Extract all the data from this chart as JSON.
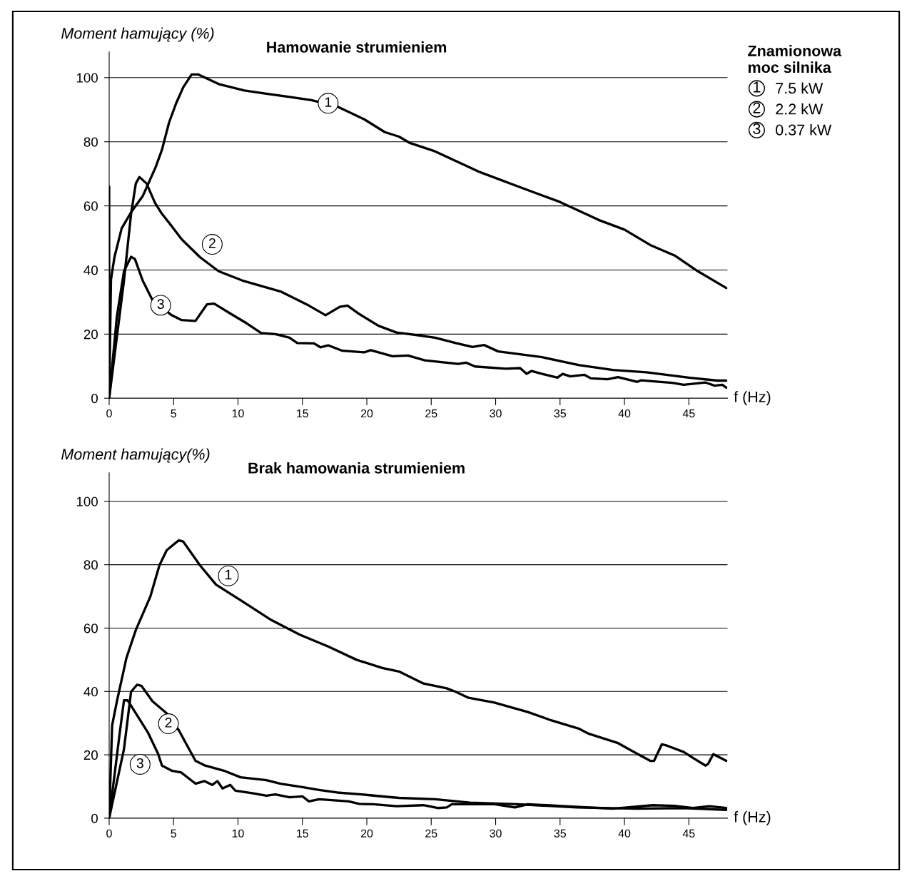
{
  "chart_data": [
    {
      "type": "line",
      "title": "Hamowanie strumieniem",
      "ylabel": "Moment hamujący (%)",
      "xlabel": "f (Hz)",
      "legend_title": "Znamionowa\nmoc silnika",
      "xlim": [
        0,
        48
      ],
      "xticks": [
        0,
        5,
        10,
        15,
        20,
        25,
        30,
        35,
        40,
        45
      ],
      "ylim": [
        0,
        108
      ],
      "yticks": [
        0,
        20,
        40,
        60,
        80,
        100
      ],
      "grid": "y",
      "legend": "top right",
      "marker": "none",
      "line_style": "solid",
      "series": [
        {
          "name": "7.5 kW",
          "color": "#000000",
          "x": [
            0,
            0,
            0.14,
            0.41,
            0.97,
            1.7,
            2.6,
            3.6,
            4.1,
            4.65,
            5.2,
            5.75,
            6.4,
            6.9,
            8.5,
            10.5,
            12.2,
            14.0,
            15.7,
            17.7,
            19.8,
            21.4,
            22.5,
            23.3,
            25.3,
            28.8,
            32.5,
            35.0,
            38.0,
            40.0,
            42.0,
            43.9,
            45.7,
            47.9
          ],
          "values": [
            66,
            0,
            37,
            44,
            53,
            58,
            63,
            72,
            77.5,
            86,
            92,
            97,
            101,
            101,
            98,
            96,
            95,
            94,
            93,
            91,
            87,
            83,
            81.6,
            79.7,
            77,
            70.5,
            64.9,
            61.2,
            55.6,
            52.6,
            47.8,
            44.5,
            39.6,
            34.4
          ]
        },
        {
          "name": "2.2 kW",
          "color": "#000000",
          "x": [
            0,
            1.15,
            1.7,
            2.07,
            2.35,
            2.9,
            3.55,
            4.1,
            4.85,
            5.6,
            7.05,
            8.5,
            10.35,
            13.3,
            15.5,
            16.8,
            17.9,
            18.5,
            19.4,
            20.9,
            22.3,
            23.3,
            25.3,
            26.9,
            28.2,
            29.1,
            30.2,
            33.6,
            36.5,
            39.1,
            41.7,
            45.0,
            47.2,
            47.9
          ],
          "values": [
            0,
            36.7,
            57.5,
            67,
            69,
            67,
            61,
            57.5,
            53.7,
            49.7,
            44,
            39.6,
            36.7,
            33.3,
            28.9,
            25.9,
            28.5,
            28.9,
            26.3,
            22.6,
            20.5,
            20,
            18.9,
            17.2,
            16.0,
            16.6,
            14.6,
            12.8,
            10.3,
            8.8,
            8.1,
            6.4,
            5.5,
            5.5
          ]
        },
        {
          "name": "0.37 kW",
          "color": "#000000",
          "x": [
            0,
            0.6,
            1.15,
            1.7,
            2.0,
            2.6,
            3.35,
            4.85,
            5.6,
            6.7,
            7.6,
            8.15,
            9.45,
            10.7,
            11.8,
            12.9,
            14.0,
            14.6,
            15.9,
            16.4,
            17.0,
            18.1,
            19.8,
            20.3,
            21.2,
            22.0,
            23.2,
            24.5,
            27.1,
            27.7,
            28.4,
            30.8,
            31.9,
            32.4,
            32.8,
            33.9,
            34.8,
            35.2,
            35.8,
            36.9,
            37.4,
            38.7,
            39.5,
            41.0,
            41.3,
            42.8,
            43.7,
            44.6,
            46.3,
            47.0,
            47.6,
            47.9
          ],
          "values": [
            0,
            25.5,
            39.6,
            44.1,
            43.4,
            36.7,
            30.7,
            25.9,
            24.4,
            24.1,
            29.3,
            29.5,
            26.3,
            23.3,
            20.3,
            20.0,
            18.9,
            17.2,
            17.1,
            15.9,
            16.5,
            14.8,
            14.3,
            15.0,
            14.0,
            13.1,
            13.3,
            11.8,
            10.7,
            11.1,
            9.9,
            9.2,
            9.4,
            7.6,
            8.5,
            7.3,
            6.4,
            7.6,
            6.8,
            7.3,
            6.2,
            5.9,
            6.6,
            5.1,
            5.6,
            5.1,
            4.8,
            4.2,
            4.9,
            3.9,
            4.2,
            3.3
          ]
        }
      ],
      "annotations": [
        {
          "text": "1",
          "x": 17.0,
          "y": 92
        },
        {
          "text": "2",
          "x": 8.0,
          "y": 48
        },
        {
          "text": "3",
          "x": 4.0,
          "y": 29
        }
      ]
    },
    {
      "type": "line",
      "title": "Brak hamowania strumieniem",
      "ylabel": "Moment hamujący(%)",
      "xlabel": "f (Hz)",
      "xlim": [
        0,
        48
      ],
      "xticks": [
        0,
        5,
        10,
        15,
        20,
        25,
        30,
        35,
        40,
        45
      ],
      "ylim": [
        0,
        109
      ],
      "yticks": [
        0,
        20,
        40,
        60,
        80,
        100
      ],
      "grid": "y",
      "marker": "none",
      "line_style": "solid",
      "series": [
        {
          "color": "#000000",
          "x": [
            0,
            0.23,
            0.6,
            1.33,
            2.07,
            3.2,
            3.9,
            4.47,
            5.4,
            5.75,
            7.05,
            8.3,
            10.2,
            12.6,
            14.8,
            17.0,
            19.2,
            21.2,
            22.5,
            24.4,
            26.2,
            26.9,
            27.9,
            29.9,
            32.5,
            34.3,
            36.5,
            37.2,
            39.5,
            41.0,
            42.0,
            42.3,
            42.9,
            43.3,
            44.6,
            45.4,
            46.3,
            46.5,
            46.9,
            47.9
          ],
          "values": [
            0,
            29.3,
            36.9,
            50.4,
            59.4,
            70,
            79.8,
            84.6,
            87.7,
            87.3,
            79.8,
            73.7,
            68.8,
            62.5,
            57.9,
            54.2,
            50.0,
            47.4,
            46.3,
            42.5,
            41.0,
            39.9,
            38.0,
            36.5,
            33.5,
            30.9,
            28.2,
            26.7,
            23.7,
            20.3,
            18.1,
            18.1,
            23.3,
            22.9,
            20.9,
            18.8,
            16.6,
            17.2,
            20.2,
            18.1
          ]
        },
        {
          "color": "#000000",
          "x": [
            0,
            1.15,
            1.7,
            2.16,
            2.5,
            3.36,
            4.47,
            5.4,
            6.3,
            6.7,
            7.4,
            8.9,
            10.2,
            12.2,
            13.3,
            15.0,
            16.3,
            17.7,
            19.6,
            21.4,
            22.5,
            25.3,
            28.0,
            31.7,
            36.3,
            41.0,
            44.6,
            47.9
          ],
          "values": [
            0,
            21.8,
            39.9,
            42.1,
            41.8,
            36.9,
            33.1,
            27.8,
            21.1,
            18.1,
            16.7,
            15.0,
            12.9,
            12.0,
            10.9,
            9.8,
            8.9,
            8.1,
            7.5,
            6.8,
            6.4,
            6.0,
            4.9,
            4.4,
            3.4,
            3.0,
            3.2,
            2.6
          ]
        },
        {
          "color": "#000000",
          "x": [
            0,
            0.78,
            1.15,
            1.43,
            2.07,
            3.0,
            3.8,
            4.1,
            4.85,
            5.6,
            6.7,
            7.4,
            8.0,
            8.4,
            8.8,
            9.4,
            9.8,
            11.1,
            12.2,
            12.9,
            14.0,
            15.0,
            15.5,
            16.3,
            18.6,
            19.4,
            20.5,
            22.3,
            24.4,
            25.5,
            26.2,
            26.6,
            27.1,
            29.9,
            31.5,
            32.5,
            35.4,
            39.1,
            42.2,
            43.9,
            45.3,
            46.6,
            47.9
          ],
          "values": [
            0,
            25.6,
            37.2,
            37.2,
            33.1,
            27.1,
            20.3,
            16.6,
            15.0,
            14.4,
            10.9,
            11.7,
            10.5,
            11.7,
            9.4,
            10.5,
            8.7,
            7.9,
            7.1,
            7.5,
            6.6,
            6.9,
            5.3,
            6.0,
            5.3,
            4.5,
            4.4,
            3.8,
            4.1,
            3.2,
            3.4,
            4.4,
            4.4,
            4.4,
            3.4,
            4.4,
            3.8,
            3.0,
            4.1,
            3.9,
            3.2,
            3.8,
            3.2
          ]
        }
      ],
      "annotations": [
        {
          "text": "1",
          "x": 9.25,
          "y": 76.5
        },
        {
          "text": "2",
          "x": 4.6,
          "y": 29.8
        },
        {
          "text": "3",
          "x": 2.4,
          "y": 17
        }
      ]
    }
  ]
}
